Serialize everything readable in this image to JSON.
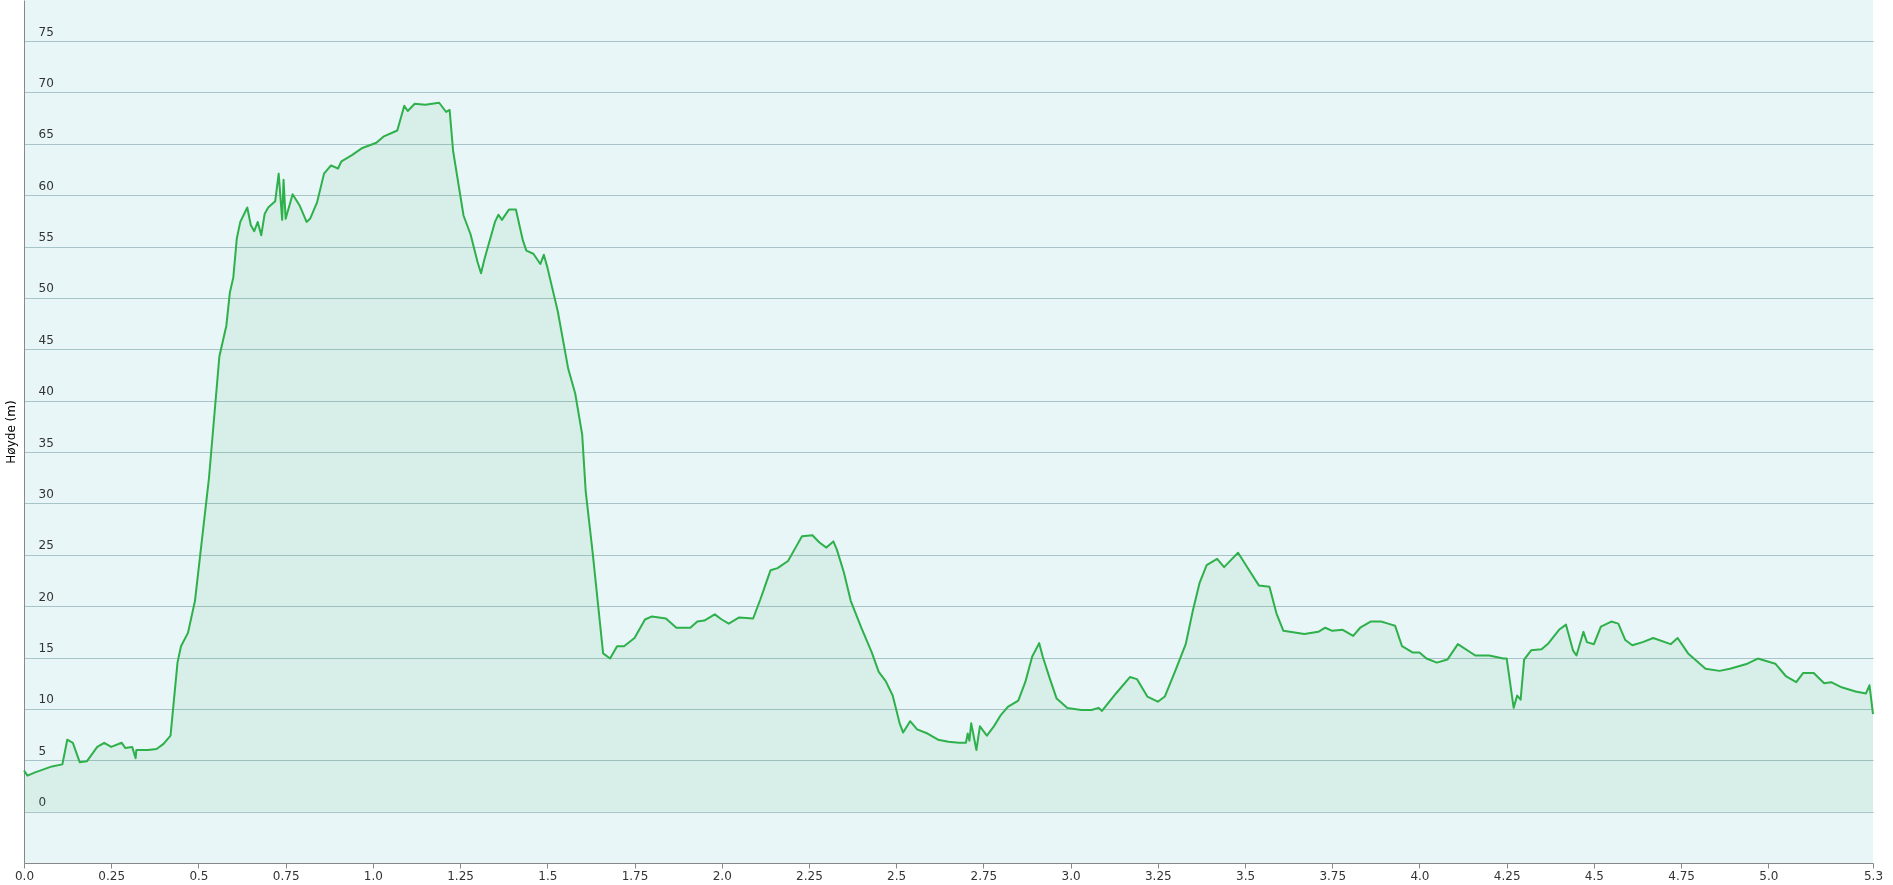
{
  "chart_data": {
    "type": "area",
    "ylabel": "Høyde (m)",
    "xlim": [
      0,
      5.3
    ],
    "ylim": [
      -5,
      79
    ],
    "xticks": [
      {
        "value": 0,
        "label": "0.0"
      },
      0.25,
      0.5,
      0.75,
      {
        "value": 1,
        "label": "1.0"
      },
      1.25,
      1.5,
      1.75,
      {
        "value": 2,
        "label": "2.0"
      },
      2.25,
      2.5,
      2.75,
      {
        "value": 3,
        "label": "3.0"
      },
      3.25,
      3.5,
      3.75,
      {
        "value": 4,
        "label": "4.0"
      },
      4.25,
      4.5,
      4.75,
      {
        "value": 5,
        "label": "5.0"
      },
      5.3
    ],
    "yticks": [
      0,
      5,
      10,
      15,
      20,
      25,
      30,
      35,
      40,
      45,
      50,
      55,
      60,
      65,
      70,
      75
    ],
    "grid": "y",
    "x": [
      0,
      0.01,
      0.03,
      0.08,
      0.11,
      0.124,
      0.14,
      0.16,
      0.18,
      0.21,
      0.23,
      0.25,
      0.28,
      0.29,
      0.31,
      0.32,
      0.322,
      0.355,
      0.38,
      0.4,
      0.42,
      0.44,
      0.45,
      0.47,
      0.49,
      0.53,
      0.56,
      0.58,
      0.59,
      0.6,
      0.61,
      0.62,
      0.64,
      0.65,
      0.66,
      0.67,
      0.68,
      0.69,
      0.7,
      0.72,
      0.73,
      0.74,
      0.744,
      0.75,
      0.77,
      0.79,
      0.81,
      0.82,
      0.84,
      0.86,
      0.88,
      0.9,
      0.91,
      0.94,
      0.97,
      1.01,
      1.03,
      1.07,
      1.09,
      1.1,
      1.12,
      1.15,
      1.17,
      1.19,
      1.21,
      1.22,
      1.23,
      1.26,
      1.28,
      1.3,
      1.31,
      1.32,
      1.35,
      1.36,
      1.37,
      1.39,
      1.41,
      1.43,
      1.44,
      1.46,
      1.48,
      1.49,
      1.5,
      1.53,
      1.56,
      1.58,
      1.6,
      1.61,
      1.63,
      1.66,
      1.68,
      1.7,
      1.72,
      1.75,
      1.78,
      1.8,
      1.84,
      1.87,
      1.91,
      1.93,
      1.95,
      1.98,
      2.0,
      2.02,
      2.05,
      2.09,
      2.11,
      2.14,
      2.16,
      2.19,
      2.21,
      2.23,
      2.26,
      2.28,
      2.3,
      2.32,
      2.33,
      2.35,
      2.37,
      2.4,
      2.43,
      2.45,
      2.47,
      2.49,
      2.51,
      2.52,
      2.54,
      2.56,
      2.59,
      2.62,
      2.65,
      2.68,
      2.7,
      2.705,
      2.71,
      2.715,
      2.73,
      2.74,
      2.76,
      2.78,
      2.8,
      2.82,
      2.85,
      2.87,
      2.89,
      2.91,
      2.92,
      2.94,
      2.96,
      2.99,
      3.03,
      3.06,
      3.08,
      3.09,
      3.13,
      3.17,
      3.19,
      3.22,
      3.25,
      3.27,
      3.3,
      3.33,
      3.35,
      3.37,
      3.39,
      3.42,
      3.44,
      3.46,
      3.48,
      3.51,
      3.54,
      3.57,
      3.59,
      3.61,
      3.67,
      3.71,
      3.73,
      3.75,
      3.78,
      3.81,
      3.83,
      3.86,
      3.89,
      3.91,
      3.93,
      3.95,
      3.98,
      4.0,
      4.02,
      4.05,
      4.08,
      4.11,
      4.16,
      4.2,
      4.24,
      4.25,
      4.27,
      4.28,
      4.29,
      4.3,
      4.32,
      4.35,
      4.37,
      4.4,
      4.42,
      4.44,
      4.45,
      4.47,
      4.48,
      4.5,
      4.52,
      4.55,
      4.57,
      4.59,
      4.61,
      4.64,
      4.67,
      4.72,
      4.74,
      4.77,
      4.82,
      4.86,
      4.89,
      4.94,
      4.97,
      5.02,
      5.05,
      5.08,
      5.1,
      5.13,
      5.16,
      5.18,
      5.21,
      5.25,
      5.28,
      5.29,
      5.3
    ],
    "series": [
      {
        "color": "#2eb04b",
        "values": [
          4.0,
          3.5,
          3.8,
          4.4,
          4.6,
          7.0,
          6.7,
          4.8,
          4.9,
          6.3,
          6.7,
          6.3,
          6.7,
          6.2,
          6.3,
          5.2,
          6.0,
          6.0,
          6.1,
          6.6,
          7.4,
          14.5,
          16.1,
          17.4,
          20.5,
          32.4,
          44.3,
          47.3,
          50.5,
          52.0,
          55.8,
          57.4,
          58.8,
          57.1,
          56.5,
          57.4,
          56.1,
          58.2,
          58.8,
          59.4,
          62.1,
          57.6,
          61.5,
          57.7,
          60.1,
          59.0,
          57.4,
          57.7,
          59.3,
          62.1,
          62.9,
          62.6,
          63.3,
          63.9,
          64.6,
          65.1,
          65.7,
          66.3,
          68.7,
          68.2,
          68.9,
          68.8,
          68.9,
          69.0,
          68.1,
          68.3,
          64.3,
          58.0,
          56.2,
          53.5,
          52.4,
          53.8,
          57.4,
          58.1,
          57.6,
          58.6,
          58.6,
          55.6,
          54.6,
          54.3,
          53.3,
          54.2,
          53.0,
          48.7,
          43.1,
          40.7,
          36.7,
          31.2,
          25.2,
          15.4,
          14.9,
          16.1,
          16.1,
          16.9,
          18.7,
          19.0,
          18.8,
          17.9,
          17.9,
          18.5,
          18.6,
          19.2,
          18.7,
          18.3,
          18.9,
          18.8,
          20.6,
          23.5,
          23.7,
          24.4,
          25.6,
          26.8,
          26.9,
          26.2,
          25.7,
          26.3,
          25.5,
          23.3,
          20.5,
          17.9,
          15.5,
          13.6,
          12.7,
          11.3,
          8.6,
          7.7,
          8.8,
          8.0,
          7.6,
          7.0,
          6.8,
          6.7,
          6.7,
          7.6,
          6.9,
          8.6,
          6.0,
          8.3,
          7.4,
          8.3,
          9.4,
          10.2,
          10.8,
          12.6,
          15.1,
          16.4,
          15.1,
          13.0,
          11.0,
          10.1,
          9.9,
          9.9,
          10.1,
          9.8,
          11.5,
          13.1,
          12.9,
          11.2,
          10.7,
          11.2,
          13.7,
          16.3,
          19.5,
          22.3,
          24.0,
          24.6,
          23.8,
          24.5,
          25.2,
          23.6,
          22.0,
          21.9,
          19.3,
          17.6,
          17.3,
          17.5,
          17.9,
          17.6,
          17.7,
          17.1,
          17.9,
          18.5,
          18.5,
          18.3,
          18.1,
          16.1,
          15.5,
          15.5,
          14.9,
          14.5,
          14.8,
          16.3,
          15.2,
          15.2,
          14.9,
          14.9,
          10.1,
          11.3,
          10.9,
          14.8,
          15.7,
          15.8,
          16.4,
          17.7,
          18.2,
          15.7,
          15.2,
          17.5,
          16.5,
          16.3,
          18.0,
          18.5,
          18.3,
          16.7,
          16.2,
          16.5,
          16.9,
          16.3,
          16.9,
          15.4,
          13.9,
          13.7,
          13.9,
          14.4,
          14.9,
          14.4,
          13.2,
          12.6,
          13.5,
          13.5,
          12.5,
          12.6,
          12.1,
          11.7,
          11.5,
          12.3,
          9.5
        ]
      }
    ]
  }
}
